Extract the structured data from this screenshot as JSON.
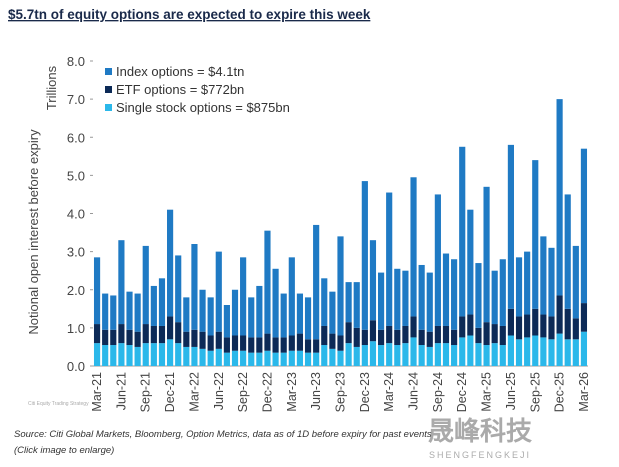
{
  "chart_data": {
    "type": "stacked_bar",
    "title": "$5.7tn of equity options are expected to expire this week",
    "y_unit_label": "Trillions",
    "y_axis_label": "Notional open interest before expiry",
    "source": "Source: Citi Global Markets, Bloomberg, Option Metrics, data as of 1D before expiry for past events",
    "footnote": "(Click image to enlarge)",
    "logo_text": "Citi Equity Trading Strategy",
    "watermark": "晟峰科技",
    "watermark_sub": "SHENGFENGKEJI",
    "categories": [
      "Mar-21",
      null,
      null,
      "Jun-21",
      null,
      null,
      "Sep-21",
      null,
      null,
      "Dec-21",
      null,
      null,
      "Mar-22",
      null,
      null,
      "Jun-22",
      null,
      null,
      "Sep-22",
      null,
      null,
      "Dec-22",
      null,
      null,
      "Mar-23",
      null,
      null,
      "Jun-23",
      null,
      null,
      "Sep-23",
      null,
      null,
      "Dec-23",
      null,
      null,
      "Mar-24",
      null,
      null,
      "Jun-24",
      null,
      null,
      "Sep-24",
      null,
      null,
      "Dec-24",
      null,
      null,
      "Mar-25",
      null,
      null,
      "Jun-25",
      null,
      null,
      "Sep-25",
      null,
      null,
      "Dec-25",
      null,
      null,
      "Mar-26"
    ],
    "series": [
      {
        "name": "Index options = $4.1tn",
        "color": "#1f7ac4",
        "values": [
          1.75,
          0.95,
          0.9,
          2.2,
          1.0,
          1.0,
          2.05,
          1.05,
          1.25,
          2.8,
          1.75,
          0.9,
          2.25,
          1.1,
          1.0,
          2.1,
          0.85,
          1.2,
          2.05,
          1.05,
          1.35,
          2.7,
          1.8,
          1.15,
          2.05,
          1.05,
          1.1,
          3.0,
          1.25,
          1.1,
          2.6,
          1.05,
          1.2,
          3.9,
          2.1,
          1.5,
          3.5,
          1.6,
          1.45,
          3.65,
          1.7,
          1.55,
          3.45,
          1.9,
          1.85,
          4.45,
          2.75,
          1.7,
          3.55,
          1.4,
          1.75,
          4.3,
          1.55,
          1.65,
          3.9,
          2.05,
          1.8,
          5.15,
          3.0,
          1.9,
          4.05
        ]
      },
      {
        "name": "ETF options = $772bn",
        "color": "#0c2a57",
        "values": [
          0.5,
          0.4,
          0.4,
          0.5,
          0.4,
          0.4,
          0.5,
          0.45,
          0.45,
          0.6,
          0.55,
          0.4,
          0.45,
          0.45,
          0.4,
          0.45,
          0.4,
          0.4,
          0.4,
          0.4,
          0.4,
          0.45,
          0.4,
          0.4,
          0.4,
          0.45,
          0.35,
          0.35,
          0.5,
          0.4,
          0.4,
          0.55,
          0.5,
          0.4,
          0.55,
          0.4,
          0.45,
          0.4,
          0.45,
          0.55,
          0.4,
          0.4,
          0.45,
          0.45,
          0.4,
          0.55,
          0.55,
          0.4,
          0.6,
          0.5,
          0.5,
          0.7,
          0.6,
          0.6,
          0.7,
          0.6,
          0.6,
          1.0,
          0.8,
          0.55,
          0.75
        ]
      },
      {
        "name": "Single stock options = $875bn",
        "color": "#2bb8ea",
        "values": [
          0.6,
          0.55,
          0.55,
          0.6,
          0.55,
          0.5,
          0.6,
          0.6,
          0.6,
          0.7,
          0.6,
          0.5,
          0.5,
          0.45,
          0.4,
          0.45,
          0.35,
          0.4,
          0.4,
          0.35,
          0.35,
          0.4,
          0.35,
          0.35,
          0.4,
          0.4,
          0.35,
          0.35,
          0.55,
          0.45,
          0.4,
          0.6,
          0.5,
          0.55,
          0.65,
          0.55,
          0.6,
          0.55,
          0.6,
          0.75,
          0.55,
          0.5,
          0.6,
          0.6,
          0.55,
          0.75,
          0.8,
          0.6,
          0.55,
          0.6,
          0.55,
          0.8,
          0.7,
          0.75,
          0.8,
          0.75,
          0.7,
          0.85,
          0.7,
          0.7,
          0.9
        ]
      }
    ],
    "ylim": [
      0,
      8
    ],
    "yticks": [
      {
        "value": 0,
        "label": "0.0"
      },
      {
        "value": 1,
        "label": "1.0"
      },
      {
        "value": 2,
        "label": "2.0"
      },
      {
        "value": 3,
        "label": "3.0"
      },
      {
        "value": 4,
        "label": "4.0"
      },
      {
        "value": 5,
        "label": "5.0"
      },
      {
        "value": 6,
        "label": "6.0"
      },
      {
        "value": 7,
        "label": "7.0"
      },
      {
        "value": 8,
        "label": "8.0"
      }
    ],
    "legend": "upper-left"
  }
}
